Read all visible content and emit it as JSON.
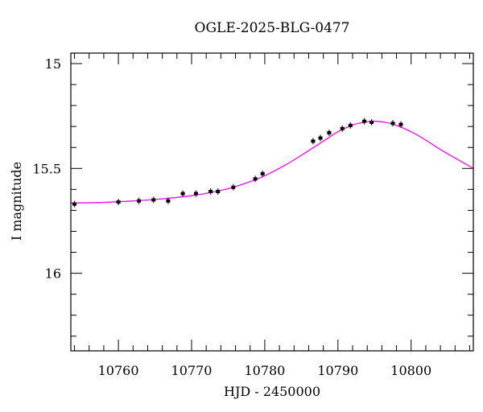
{
  "chart_data": {
    "type": "scatter",
    "title": "OGLE-2025-BLG-0477",
    "xlabel": "HJD - 2450000",
    "ylabel": "I magnitude",
    "xlim": [
      10753.5,
      10808.5
    ],
    "ylim": [
      16.37,
      14.95
    ],
    "y_inverted": true,
    "xticks": [
      10760,
      10770,
      10780,
      10790,
      10800
    ],
    "xtick_labels": [
      "10760",
      "10770",
      "10780",
      "10790",
      "10800"
    ],
    "yticks": [
      15,
      15.5,
      16
    ],
    "ytick_labels": [
      "15",
      "15.5",
      "16"
    ],
    "grid": false,
    "point_color": "#000000",
    "model_color": "#ff00ff",
    "points": [
      {
        "x": 10754.0,
        "y": 15.67
      },
      {
        "x": 10760.0,
        "y": 15.66
      },
      {
        "x": 10762.8,
        "y": 15.655
      },
      {
        "x": 10764.8,
        "y": 15.65
      },
      {
        "x": 10766.8,
        "y": 15.655
      },
      {
        "x": 10768.8,
        "y": 15.62
      },
      {
        "x": 10770.6,
        "y": 15.62
      },
      {
        "x": 10772.6,
        "y": 15.61
      },
      {
        "x": 10773.6,
        "y": 15.61
      },
      {
        "x": 10775.7,
        "y": 15.59
      },
      {
        "x": 10778.7,
        "y": 15.55
      },
      {
        "x": 10779.7,
        "y": 15.525
      },
      {
        "x": 10786.6,
        "y": 15.37
      },
      {
        "x": 10787.6,
        "y": 15.355
      },
      {
        "x": 10788.8,
        "y": 15.33
      },
      {
        "x": 10790.6,
        "y": 15.31
      },
      {
        "x": 10791.7,
        "y": 15.295
      },
      {
        "x": 10793.6,
        "y": 15.275
      },
      {
        "x": 10794.6,
        "y": 15.28
      },
      {
        "x": 10797.5,
        "y": 15.285
      },
      {
        "x": 10798.6,
        "y": 15.29
      }
    ],
    "model": {
      "x": [
        10753.5,
        10758,
        10762,
        10766,
        10770,
        10774,
        10777,
        10780,
        10783,
        10786,
        10788,
        10790,
        10792,
        10793.5,
        10795,
        10796.5,
        10798,
        10800,
        10802,
        10804,
        10806,
        10808.5
      ],
      "y": [
        15.665,
        15.662,
        15.655,
        15.645,
        15.63,
        15.605,
        15.575,
        15.535,
        15.48,
        15.415,
        15.37,
        15.325,
        15.293,
        15.28,
        15.275,
        15.28,
        15.295,
        15.325,
        15.365,
        15.41,
        15.45,
        15.5
      ]
    }
  }
}
